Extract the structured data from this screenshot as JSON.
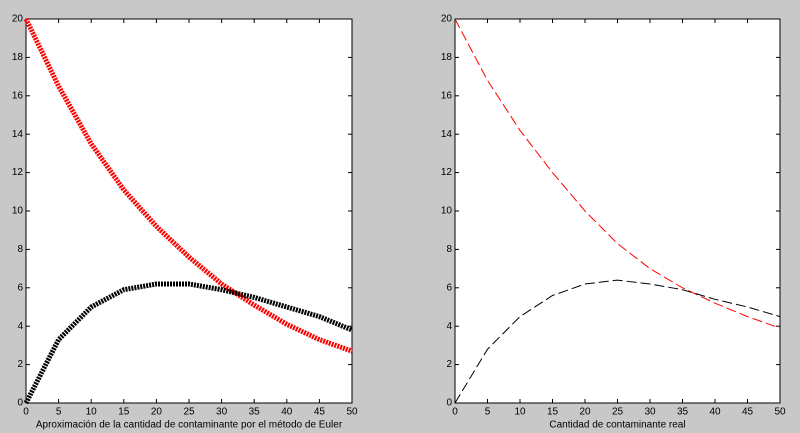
{
  "chart_data": [
    {
      "type": "line",
      "xlabel": "Aproximación de la cantidad de contaminante por el método de Euler",
      "x": [
        0,
        5,
        10,
        15,
        20,
        25,
        30,
        35,
        40,
        45,
        50
      ],
      "series": [
        {
          "color": "#ff0000",
          "style": "markers",
          "values": [
            20,
            16.5,
            13.5,
            11.1,
            9.2,
            7.6,
            6.2,
            5.1,
            4.1,
            3.3,
            2.7
          ]
        },
        {
          "color": "#000000",
          "style": "markers",
          "values": [
            0,
            3.3,
            5.0,
            5.9,
            6.2,
            6.2,
            5.9,
            5.5,
            5.0,
            4.5,
            3.8
          ]
        }
      ],
      "xlim": [
        0,
        50
      ],
      "xticks": [
        0,
        5,
        10,
        15,
        20,
        25,
        30,
        35,
        40,
        45,
        50
      ],
      "ylim": [
        0,
        20
      ],
      "yticks": [
        0,
        2,
        4,
        6,
        8,
        10,
        12,
        14,
        16,
        18,
        20
      ]
    },
    {
      "type": "line",
      "xlabel": "Cantidad de contaminante real",
      "x": [
        0,
        5,
        10,
        15,
        20,
        25,
        30,
        35,
        40,
        45,
        50
      ],
      "series": [
        {
          "color": "#ff0000",
          "style": "dashed",
          "values": [
            20,
            16.8,
            14.2,
            12.0,
            10.0,
            8.3,
            7.0,
            6.0,
            5.2,
            4.5,
            3.9
          ]
        },
        {
          "color": "#000000",
          "style": "dashed",
          "values": [
            0,
            2.8,
            4.5,
            5.6,
            6.2,
            6.4,
            6.2,
            5.9,
            5.4,
            5.0,
            4.5
          ]
        }
      ],
      "xlim": [
        0,
        50
      ],
      "xticks": [
        0,
        5,
        10,
        15,
        20,
        25,
        30,
        35,
        40,
        45,
        50
      ],
      "ylim": [
        0,
        20
      ],
      "yticks": [
        0,
        2,
        4,
        6,
        8,
        10,
        12,
        14,
        16,
        18,
        20
      ]
    }
  ]
}
